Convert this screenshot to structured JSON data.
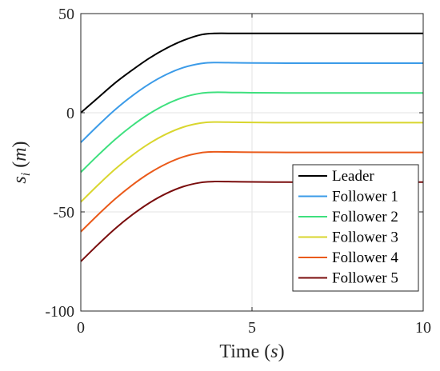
{
  "chart_data": {
    "type": "line",
    "xlabel": "Time (s)",
    "ylabel": "s_i (m)",
    "xlim": [
      0,
      10
    ],
    "ylim": [
      -100,
      50
    ],
    "xticks": [
      0,
      5,
      10
    ],
    "yticks": [
      -100,
      -50,
      0,
      50
    ],
    "xtick_labels": [
      "0",
      "5",
      "10"
    ],
    "ytick_labels": [
      "-100",
      "-50",
      "0",
      "50"
    ],
    "grid": true,
    "legend_position": "bottom-right",
    "x": [
      0,
      0.5,
      1,
      1.5,
      2,
      2.5,
      3,
      3.5,
      3.9,
      4.5,
      5,
      6,
      7,
      8,
      9,
      10
    ],
    "series": [
      {
        "name": "Leader",
        "color": "#000000",
        "values": [
          0,
          7.5,
          15,
          21.5,
          27.5,
          32.5,
          36.5,
          39.3,
          40,
          40,
          40,
          40,
          40,
          40,
          40,
          40
        ]
      },
      {
        "name": "Follower 1",
        "color": "#3b9be8",
        "values": [
          -15,
          -6.5,
          1.5,
          8.5,
          14.5,
          19.3,
          22.8,
          24.8,
          25.3,
          25.2,
          25.1,
          25.0,
          25.0,
          25.0,
          25.0,
          25.0
        ]
      },
      {
        "name": "Follower 2",
        "color": "#3ee07e",
        "values": [
          -30,
          -21.5,
          -13.5,
          -6.5,
          -0.5,
          4.3,
          7.8,
          9.8,
          10.3,
          10.2,
          10.1,
          10.0,
          10.0,
          10.0,
          10.0,
          10.0
        ]
      },
      {
        "name": "Follower 3",
        "color": "#d9d62e",
        "values": [
          -45,
          -36.5,
          -28.5,
          -21.5,
          -15.5,
          -10.7,
          -7.2,
          -5.2,
          -4.7,
          -4.8,
          -4.9,
          -5.0,
          -5.0,
          -5.0,
          -5.0,
          -5.0
        ]
      },
      {
        "name": "Follower 4",
        "color": "#ea5a1a",
        "values": [
          -60,
          -51.5,
          -43.5,
          -36.5,
          -30.5,
          -25.7,
          -22.2,
          -20.2,
          -19.7,
          -19.8,
          -19.9,
          -20.0,
          -20.0,
          -20.0,
          -20.0,
          -20.0
        ]
      },
      {
        "name": "Follower 5",
        "color": "#7a0d0d",
        "values": [
          -75,
          -66.5,
          -58.5,
          -51.5,
          -45.5,
          -40.7,
          -37.2,
          -35.2,
          -34.7,
          -34.8,
          -34.9,
          -35.0,
          -35.0,
          -35.0,
          -35.0,
          -35.0
        ]
      }
    ]
  }
}
